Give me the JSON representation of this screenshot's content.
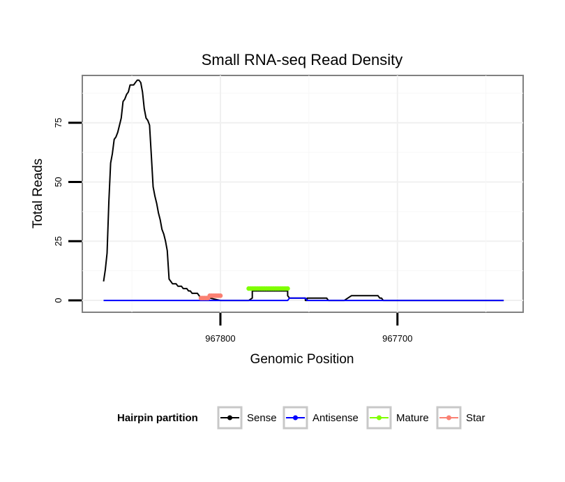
{
  "chart_data": {
    "type": "line",
    "title": "Small RNA-seq Read Density",
    "xlabel": "Genomic Position",
    "ylabel": "Total Reads",
    "x_reversed": true,
    "xlim": [
      967878,
      967629
    ],
    "ylim": [
      -5,
      95
    ],
    "x_ticks": [
      967800,
      967700
    ],
    "x_tick_labels": [
      "967800",
      "967700"
    ],
    "y_ticks": [
      0,
      25,
      50,
      75
    ],
    "y_tick_labels": [
      "0",
      "25",
      "50",
      "75"
    ],
    "grid": true,
    "legend": {
      "title": "Hairpin partition",
      "position": "bottom",
      "entries": [
        {
          "label": "Sense",
          "color": "#000000"
        },
        {
          "label": "Antisense",
          "color": "#0000ff"
        },
        {
          "label": "Mature",
          "color": "#7fff00"
        },
        {
          "label": "Star",
          "color": "#fa8072"
        }
      ]
    },
    "series": [
      {
        "name": "Sense",
        "color": "#000000",
        "style": "line",
        "x": [
          967866,
          967865,
          967864,
          967863,
          967862,
          967861,
          967860,
          967859,
          967858,
          967857,
          967856,
          967855,
          967854,
          967853,
          967852,
          967851,
          967850,
          967849,
          967848,
          967847,
          967846,
          967845,
          967844,
          967843,
          967842,
          967841,
          967840,
          967839,
          967838,
          967837,
          967836,
          967835,
          967834,
          967833,
          967832,
          967831,
          967830,
          967829,
          967828,
          967827,
          967826,
          967825,
          967824,
          967823,
          967822,
          967821,
          967820,
          967819,
          967818,
          967817,
          967816,
          967815,
          967814,
          967813,
          967812,
          967811,
          967810,
          967808,
          967806,
          967800,
          967793,
          967784,
          967782,
          967782,
          967781,
          967780,
          967762,
          967762,
          967761,
          967760,
          967752,
          967752,
          967751,
          967751,
          967742,
          967740,
          967740,
          967739,
          967738,
          967732,
          967730,
          967730,
          967728,
          967726,
          967712,
          967711,
          967710,
          967709,
          967708,
          967640
        ],
        "y": [
          8,
          13,
          20,
          42,
          58,
          62,
          68,
          69,
          71,
          74,
          77,
          84,
          85,
          87,
          88,
          91,
          91,
          91,
          92,
          93,
          93,
          92,
          88,
          81,
          77,
          76,
          74,
          61,
          48,
          44,
          41,
          37,
          34,
          30,
          28,
          25,
          21,
          9,
          8,
          7,
          7,
          7,
          6,
          6,
          6,
          5,
          5,
          5,
          4,
          4,
          3,
          3,
          3,
          3,
          2,
          1,
          1,
          1,
          1,
          0,
          0,
          0,
          1,
          4,
          4,
          4,
          4,
          2,
          1,
          1,
          1,
          0,
          0,
          1,
          1,
          1,
          1,
          0,
          0,
          0,
          0,
          0,
          1,
          2,
          2,
          2,
          1,
          1,
          0,
          0
        ]
      },
      {
        "name": "Antisense",
        "color": "#0000ff",
        "style": "line",
        "x": [
          967866,
          967762,
          967761,
          967752,
          967751,
          967712,
          967711,
          967640
        ],
        "y": [
          0,
          0,
          1,
          1,
          0,
          0,
          0,
          0
        ]
      },
      {
        "name": "Mature",
        "color": "#7fff00",
        "style": "points",
        "x": [
          967784,
          967783,
          967782,
          967781,
          967780,
          967779,
          967778,
          967777,
          967776,
          967775,
          967774,
          967773,
          967772,
          967771,
          967770,
          967769,
          967768,
          967767,
          967766,
          967765,
          967764,
          967763,
          967762
        ],
        "y": [
          5,
          5,
          5,
          5,
          5,
          5,
          5,
          5,
          5,
          5,
          5,
          5,
          5,
          5,
          5,
          5,
          5,
          5,
          5,
          5,
          5,
          5,
          5
        ]
      },
      {
        "name": "Star",
        "color": "#fa8072",
        "style": "points",
        "x": [
          967811,
          967810,
          967809,
          967808,
          967807,
          967806,
          967805,
          967804,
          967803,
          967802,
          967801,
          967800
        ],
        "y": [
          1,
          1,
          1,
          1,
          1,
          2,
          2,
          2,
          2,
          2,
          2,
          2
        ]
      }
    ]
  }
}
